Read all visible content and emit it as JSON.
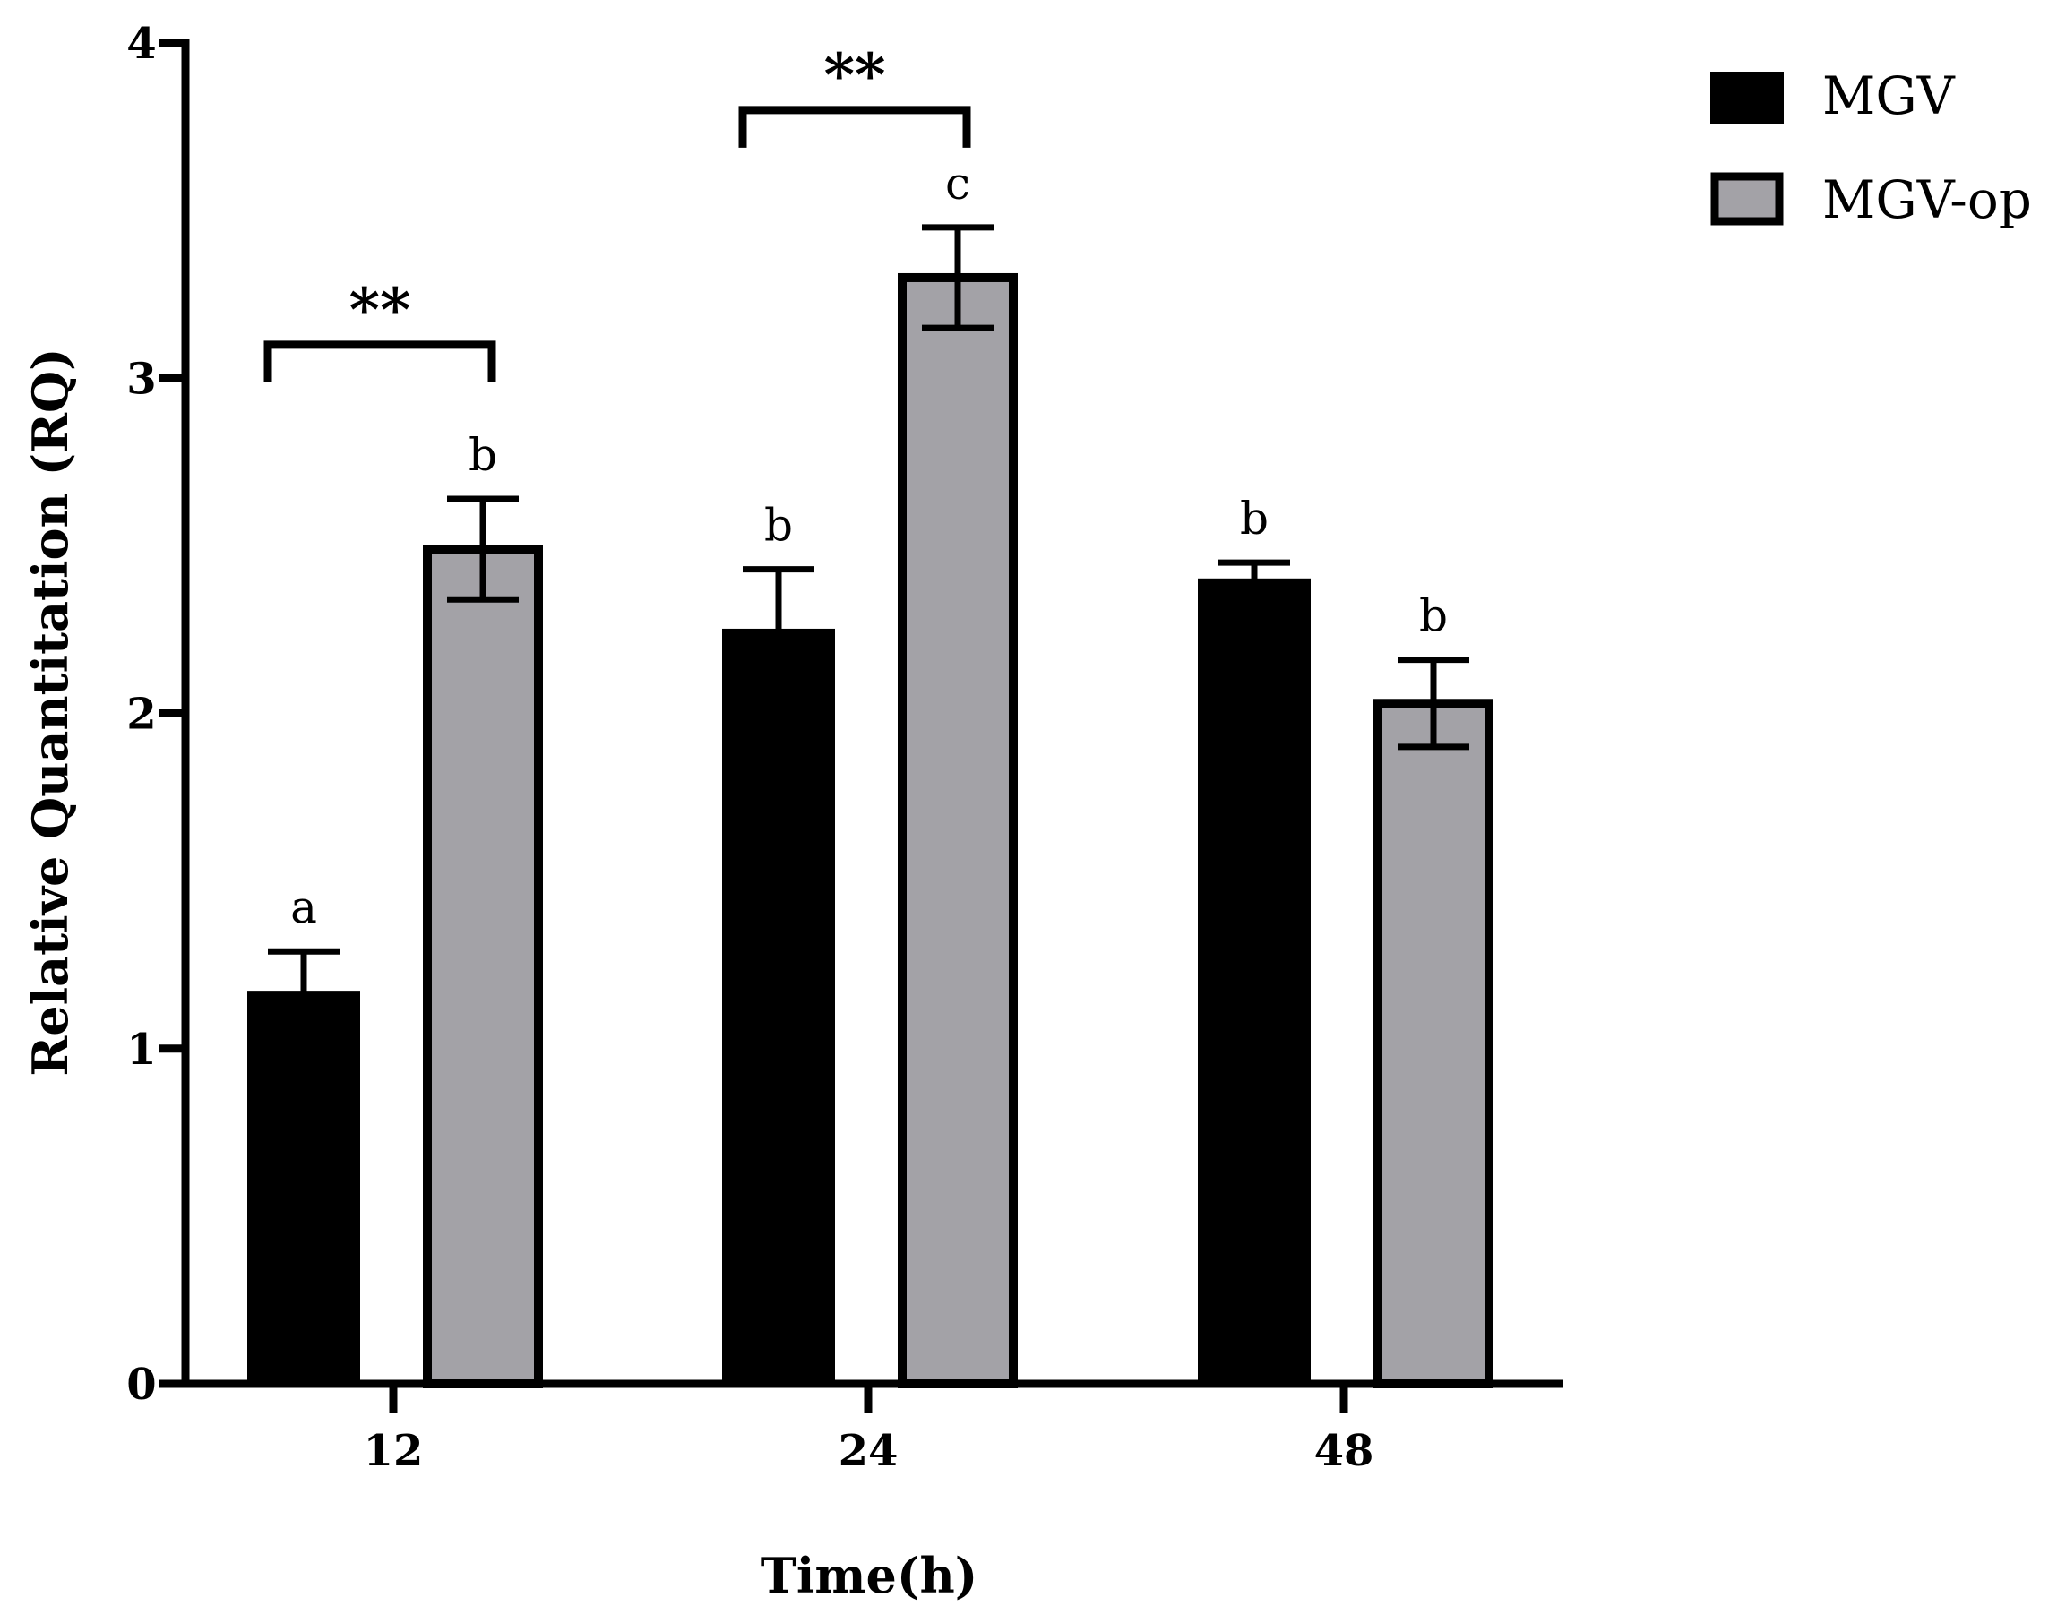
{
  "chart_data": {
    "type": "bar",
    "title": "",
    "xlabel": "Time(h)",
    "ylabel": "Relative Quantitation (RQ)",
    "ylim": [
      0,
      4
    ],
    "yticks": [
      {
        "value": 0,
        "label": "0"
      },
      {
        "value": 1,
        "label": "1"
      },
      {
        "value": 2,
        "label": "2"
      },
      {
        "value": 3,
        "label": "3"
      },
      {
        "value": 4,
        "label": "4"
      }
    ],
    "categories": [
      "12",
      "24",
      "48"
    ],
    "legend_position": "top-right",
    "series": [
      {
        "name": "MGV",
        "color": "#000000",
        "values": [
          1.17,
          2.25,
          2.4
        ],
        "errors": [
          0.12,
          0.18,
          0.05
        ],
        "letters": [
          "a",
          "b",
          "b"
        ]
      },
      {
        "name": "MGV-op",
        "color": "#a3a2a7",
        "values": [
          2.49,
          3.3,
          2.03
        ],
        "errors": [
          0.15,
          0.15,
          0.13
        ],
        "letters": [
          "b",
          "c",
          "b"
        ]
      }
    ],
    "significance": [
      {
        "category": "12",
        "label": "**",
        "y": 3.1
      },
      {
        "category": "24",
        "label": "**",
        "y": 3.8
      }
    ]
  }
}
